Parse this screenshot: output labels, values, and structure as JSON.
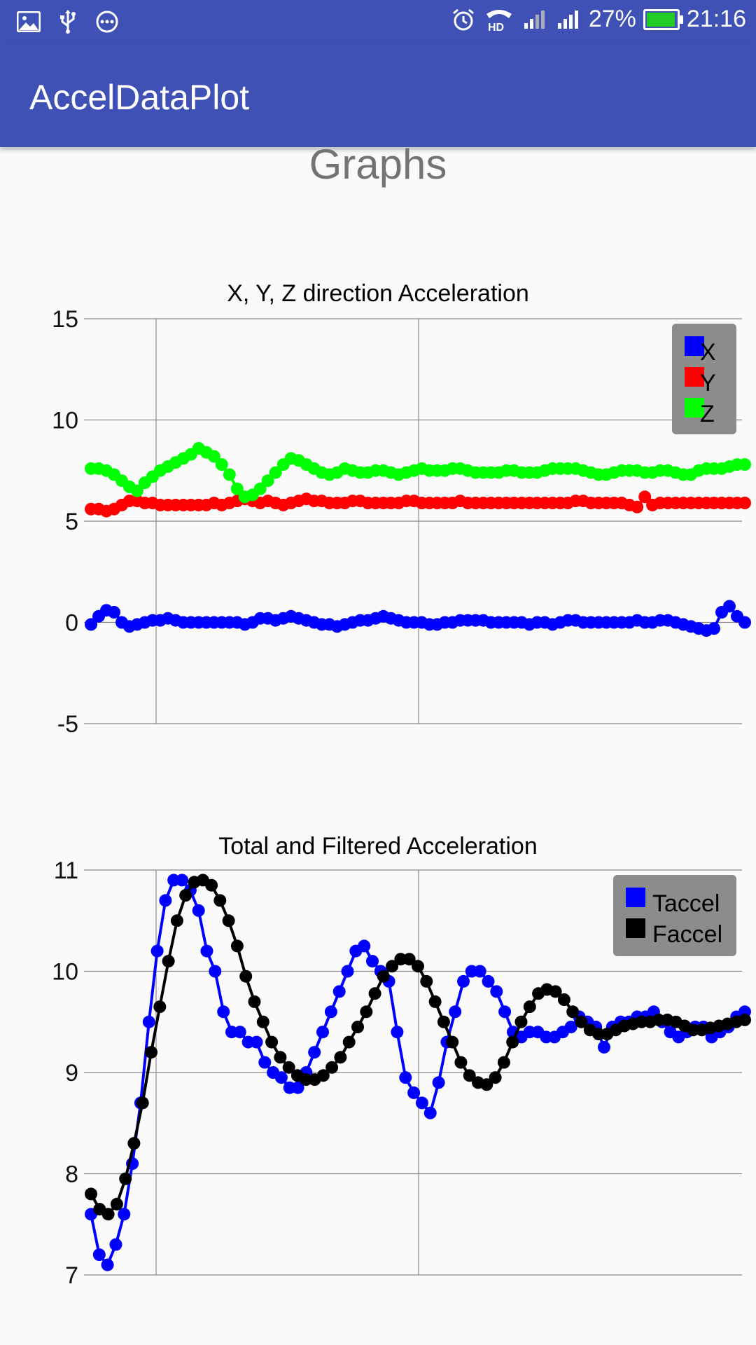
{
  "status_bar": {
    "battery_percent": "27%",
    "time": "21:16",
    "left_icons": [
      "gallery-icon",
      "usb-icon",
      "message-icon"
    ],
    "right_icons": [
      "alarm-icon",
      "hd-call-icon",
      "signal-icon",
      "signal-icon"
    ],
    "battery_color": "#22cc22"
  },
  "app_bar": {
    "title": "AccelDataPlot",
    "color": "#3f51b5"
  },
  "page": {
    "heading": "Graphs"
  },
  "chart_data": [
    {
      "type": "line",
      "title": "X, Y, Z direction Acceleration",
      "ylim": [
        -5,
        15
      ],
      "yticks": [
        "15",
        "10",
        "5",
        "0",
        "-5"
      ],
      "grid": true,
      "legend_placement": "top-right",
      "series": [
        {
          "name": "X",
          "color": "#0000ff",
          "values": [
            -0.1,
            0.3,
            0.6,
            0.5,
            0.0,
            -0.2,
            -0.1,
            0.0,
            0.1,
            0.1,
            0.2,
            0.1,
            0.0,
            0.0,
            0.0,
            0.0,
            0.0,
            0.0,
            0.0,
            0.0,
            -0.1,
            0.0,
            0.2,
            0.2,
            0.1,
            0.2,
            0.3,
            0.2,
            0.1,
            0.0,
            -0.1,
            -0.1,
            -0.2,
            -0.1,
            0.0,
            0.1,
            0.1,
            0.2,
            0.3,
            0.2,
            0.1,
            0.0,
            0.0,
            0.0,
            -0.1,
            -0.1,
            0.0,
            0.0,
            0.1,
            0.1,
            0.1,
            0.1,
            0.0,
            0.0,
            0.0,
            0.0,
            0.0,
            -0.1,
            0.0,
            0.0,
            -0.1,
            0.0,
            0.1,
            0.1,
            0.0,
            0.0,
            0.0,
            0.0,
            0.0,
            0.0,
            0.0,
            0.1,
            0.0,
            0.0,
            0.1,
            0.1,
            0.0,
            -0.1,
            -0.2,
            -0.3,
            -0.4,
            -0.3,
            0.5,
            0.8,
            0.3,
            0.0
          ]
        },
        {
          "name": "Y",
          "color": "#ff0000",
          "values": [
            5.6,
            5.6,
            5.5,
            5.6,
            5.8,
            6.0,
            6.0,
            5.9,
            5.9,
            5.8,
            5.8,
            5.8,
            5.8,
            5.8,
            5.8,
            5.8,
            5.9,
            5.8,
            5.9,
            6.0,
            6.1,
            6.0,
            5.9,
            6.0,
            5.9,
            5.8,
            5.9,
            6.0,
            6.1,
            6.0,
            6.0,
            5.9,
            5.9,
            5.9,
            6.0,
            6.0,
            5.9,
            5.9,
            5.9,
            5.9,
            5.9,
            6.0,
            6.0,
            5.9,
            5.9,
            5.9,
            5.9,
            5.9,
            6.0,
            5.9,
            5.9,
            5.9,
            5.9,
            5.9,
            5.9,
            5.9,
            5.9,
            5.9,
            5.9,
            5.9,
            5.9,
            5.9,
            5.9,
            6.0,
            6.0,
            5.9,
            5.9,
            5.9,
            5.9,
            5.9,
            5.8,
            5.7,
            6.2,
            5.8,
            5.9,
            5.9,
            5.9,
            5.9,
            5.9,
            5.9,
            5.9,
            5.9,
            5.9,
            5.9,
            5.9,
            5.9
          ]
        },
        {
          "name": "Z",
          "color": "#00ff00",
          "values": [
            7.6,
            7.6,
            7.5,
            7.3,
            7.0,
            6.7,
            6.5,
            6.9,
            7.2,
            7.5,
            7.7,
            7.9,
            8.1,
            8.3,
            8.6,
            8.4,
            8.2,
            7.8,
            7.3,
            6.6,
            6.2,
            6.3,
            6.6,
            7.0,
            7.4,
            7.8,
            8.1,
            8.0,
            7.8,
            7.6,
            7.4,
            7.3,
            7.4,
            7.6,
            7.5,
            7.4,
            7.4,
            7.5,
            7.5,
            7.4,
            7.3,
            7.4,
            7.5,
            7.6,
            7.5,
            7.5,
            7.5,
            7.6,
            7.6,
            7.5,
            7.4,
            7.4,
            7.4,
            7.4,
            7.5,
            7.5,
            7.4,
            7.4,
            7.4,
            7.5,
            7.6,
            7.6,
            7.6,
            7.6,
            7.5,
            7.4,
            7.3,
            7.3,
            7.4,
            7.5,
            7.5,
            7.5,
            7.4,
            7.4,
            7.5,
            7.5,
            7.4,
            7.3,
            7.3,
            7.5,
            7.6,
            7.6,
            7.6,
            7.7,
            7.8,
            7.8
          ]
        }
      ]
    },
    {
      "type": "line",
      "title": "Total and Filtered Acceleration",
      "ylim": [
        7,
        11
      ],
      "yticks": [
        "11",
        "10",
        "9",
        "8",
        "7"
      ],
      "grid": true,
      "legend_placement": "top-right",
      "series": [
        {
          "name": "Taccel",
          "color": "#0000ff",
          "values": [
            7.6,
            7.2,
            7.1,
            7.3,
            7.6,
            8.1,
            8.7,
            9.5,
            10.2,
            10.7,
            10.9,
            10.9,
            10.8,
            10.6,
            10.2,
            10.0,
            9.6,
            9.4,
            9.4,
            9.3,
            9.3,
            9.1,
            9.0,
            8.95,
            8.85,
            8.85,
            9.0,
            9.2,
            9.4,
            9.6,
            9.8,
            10.0,
            10.2,
            10.25,
            10.1,
            10.0,
            9.9,
            9.4,
            8.95,
            8.8,
            8.7,
            8.6,
            8.9,
            9.3,
            9.6,
            9.9,
            10.0,
            10.0,
            9.9,
            9.8,
            9.6,
            9.4,
            9.35,
            9.4,
            9.4,
            9.35,
            9.35,
            9.4,
            9.45,
            9.55,
            9.5,
            9.45,
            9.25,
            9.45,
            9.5,
            9.5,
            9.55,
            9.55,
            9.6,
            9.5,
            9.4,
            9.35,
            9.4,
            9.45,
            9.45,
            9.35,
            9.4,
            9.45,
            9.55,
            9.6
          ]
        },
        {
          "name": "Faccel",
          "color": "#000000",
          "values": [
            7.8,
            7.65,
            7.6,
            7.7,
            7.95,
            8.3,
            8.7,
            9.2,
            9.65,
            10.1,
            10.5,
            10.75,
            10.88,
            10.9,
            10.85,
            10.7,
            10.5,
            10.25,
            9.95,
            9.7,
            9.5,
            9.3,
            9.15,
            9.05,
            8.97,
            8.93,
            8.93,
            8.97,
            9.05,
            9.15,
            9.3,
            9.45,
            9.6,
            9.78,
            9.95,
            10.05,
            10.12,
            10.12,
            10.05,
            9.9,
            9.7,
            9.5,
            9.3,
            9.1,
            8.97,
            8.9,
            8.88,
            8.95,
            9.1,
            9.3,
            9.5,
            9.65,
            9.78,
            9.82,
            9.8,
            9.72,
            9.6,
            9.5,
            9.42,
            9.38,
            9.38,
            9.42,
            9.46,
            9.48,
            9.5,
            9.5,
            9.52,
            9.52,
            9.5,
            9.46,
            9.42,
            9.42,
            9.44,
            9.46,
            9.48,
            9.5,
            9.52
          ]
        }
      ]
    }
  ]
}
